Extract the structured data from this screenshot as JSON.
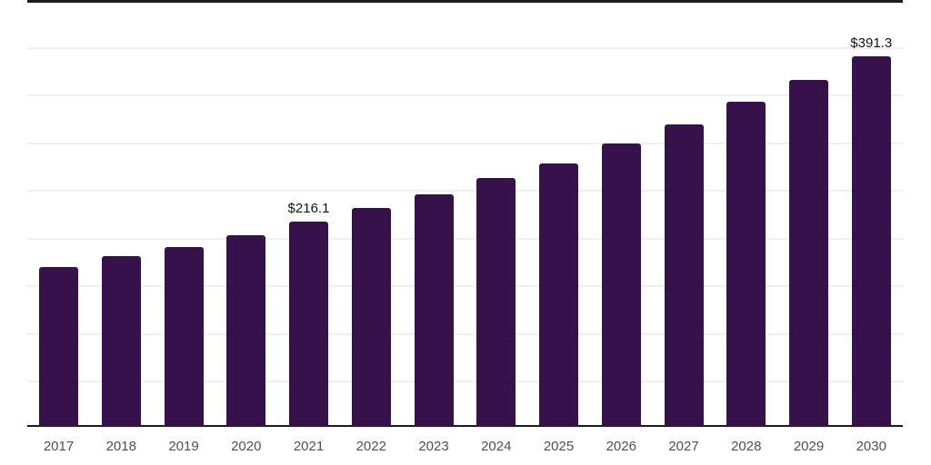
{
  "page": {
    "background": "#ffffff"
  },
  "chart_data": {
    "type": "bar",
    "title": "",
    "xlabel": "",
    "ylabel": "",
    "categories": [
      "2017",
      "2018",
      "2019",
      "2020",
      "2021",
      "2022",
      "2023",
      "2024",
      "2025",
      "2026",
      "2027",
      "2028",
      "2029",
      "2030"
    ],
    "values": [
      168.1,
      179.4,
      189.7,
      201.7,
      216.1,
      230.5,
      244.9,
      261.9,
      278.0,
      298.4,
      318.6,
      342.6,
      365.6,
      391.3
    ],
    "data_labels": [
      {
        "category": "2021",
        "text": "$216.1"
      },
      {
        "category": "2030",
        "text": "$391.3"
      }
    ],
    "ylim": [
      0,
      451
    ],
    "y_axis_tick_labels_visible": false,
    "legend": "none",
    "grid": "horizontal",
    "gridline_count": 8,
    "colors": {
      "bar": "#36114a",
      "axis_line": "#1c1c1c",
      "top_border": "#1f1f1f",
      "gridline": "#f0f0f0",
      "data_label": "#141414",
      "tick_label": "#4f4f4f",
      "background": "#ffffff"
    }
  }
}
